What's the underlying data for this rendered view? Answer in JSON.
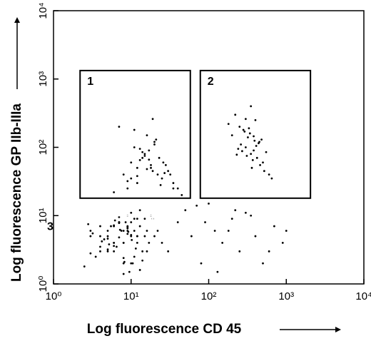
{
  "chart_data": {
    "type": "scatter",
    "x_label": "Log fluorescence CD 45",
    "y_label": "Log fluorescence GP IIb-IIIa",
    "log_x": true,
    "log_y": true,
    "xlim": [
      1,
      10000
    ],
    "ylim": [
      1,
      10000
    ],
    "xticks": [
      {
        "value": 1,
        "label": "10⁰"
      },
      {
        "value": 10,
        "label": "10¹"
      },
      {
        "value": 100,
        "label": "10²"
      },
      {
        "value": 1000,
        "label": "10³"
      },
      {
        "value": 10000,
        "label": "10⁴"
      }
    ],
    "yticks": [
      {
        "value": 1,
        "label": "10⁰"
      },
      {
        "value": 10,
        "label": "10¹"
      },
      {
        "value": 100,
        "label": "10²"
      },
      {
        "value": 1000,
        "label": "10³"
      },
      {
        "value": 10000,
        "label": "10⁴"
      }
    ],
    "color": "#000000",
    "x": [
      3,
      4,
      5,
      6,
      7,
      8,
      9,
      10,
      11,
      12,
      14,
      16,
      18,
      20,
      3.5,
      4.5,
      5.5,
      6.5,
      7.5,
      8.5,
      9.5,
      10.5,
      13,
      15,
      17,
      2.5,
      3,
      4,
      5,
      6,
      7,
      8,
      9,
      10,
      12,
      14,
      16,
      19,
      22,
      25,
      4,
      5,
      6,
      7,
      8,
      9,
      10,
      11,
      12,
      13,
      3,
      4,
      6,
      8,
      10,
      12,
      15,
      5,
      7,
      9,
      11,
      13,
      2.8,
      3.2,
      4.2,
      5.2,
      6.2,
      7.2,
      8.2,
      9.2,
      10.2,
      11.5,
      6,
      7,
      8,
      9,
      10,
      5,
      6,
      7,
      8,
      9,
      8,
      10,
      12,
      15,
      18,
      20,
      25,
      30,
      9,
      11,
      14,
      16,
      22,
      28,
      35,
      7,
      13,
      17,
      19,
      24,
      6,
      10,
      12,
      15,
      20,
      26,
      32,
      40,
      11,
      14,
      18,
      21,
      9,
      16,
      23,
      13,
      27,
      19,
      12,
      17,
      200,
      250,
      300,
      350,
      400,
      450,
      500,
      280,
      320,
      380,
      420,
      220,
      260,
      340,
      360,
      480,
      550,
      600,
      180,
      240,
      310,
      330,
      370,
      410,
      460,
      290,
      350,
      390,
      520,
      270,
      300,
      440,
      650,
      230,
      380,
      30,
      40,
      50,
      60,
      80,
      100,
      120,
      150,
      200,
      250,
      300,
      400,
      500,
      700,
      900,
      45,
      70,
      130,
      180,
      350,
      600,
      35,
      90,
      220,
      1000
    ],
    "values": [
      5,
      3,
      6,
      4,
      8,
      2,
      7,
      5,
      9,
      4,
      3,
      6,
      10,
      5,
      2.5,
      4.5,
      7,
      3.5,
      6,
      8,
      1.5,
      2,
      12,
      9,
      4,
      1.8,
      6,
      5,
      3,
      7,
      8,
      4,
      6,
      11,
      5,
      2.2,
      3,
      9,
      6,
      4,
      7,
      5,
      3,
      8,
      4,
      10,
      2,
      6,
      5,
      7,
      2.8,
      3.5,
      4,
      6,
      8,
      9,
      5,
      3.2,
      4.8,
      6.5,
      2.5,
      1.6,
      7.5,
      5.5,
      4.2,
      3.8,
      8.5,
      6.2,
      2.1,
      5.8,
      4.4,
      3.3,
      7.2,
      9.5,
      1.4,
      6.8,
      5.2,
      4.6,
      3.6,
      7.8,
      2.4,
      5.4,
      40,
      60,
      30,
      80,
      50,
      120,
      35,
      45,
      25,
      100,
      70,
      150,
      40,
      55,
      30,
      200,
      65,
      90,
      45,
      28,
      22,
      35,
      50,
      75,
      110,
      60,
      40,
      25,
      180,
      85,
      55,
      130,
      32,
      48,
      70,
      95,
      42,
      260,
      38,
      66,
      150,
      200,
      100,
      80,
      250,
      120,
      60,
      180,
      140,
      90,
      70,
      300,
      110,
      160,
      50,
      130,
      85,
      40,
      220,
      95,
      75,
      190,
      65,
      105,
      55,
      170,
      400,
      125,
      45,
      88,
      260,
      115,
      35,
      78,
      145,
      3,
      8,
      12,
      5,
      2,
      15,
      6,
      4,
      9,
      3,
      11,
      5,
      2,
      7,
      4,
      20,
      14,
      1.5,
      6,
      10,
      3,
      25,
      8,
      12,
      6
    ],
    "gates": [
      {
        "label": "1",
        "xlim": [
          2.2,
          58
        ],
        "ylim": [
          18,
          1330
        ],
        "color": "#000000"
      },
      {
        "label": "2",
        "xlim": [
          78,
          2050
        ],
        "ylim": [
          18,
          1330
        ],
        "color": "#000000"
      },
      {
        "label": "3",
        "xlim": [
          1,
          19
        ],
        "ylim": [
          1,
          10
        ],
        "color": "#ffffff"
      }
    ]
  }
}
